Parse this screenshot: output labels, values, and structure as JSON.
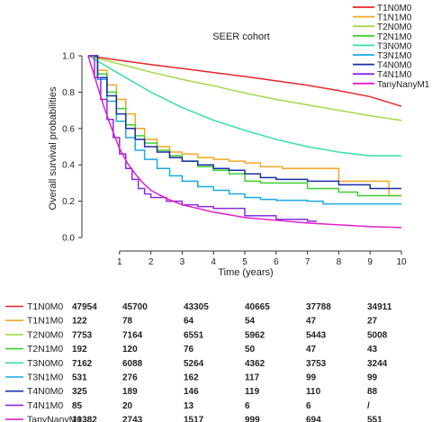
{
  "chart_data": {
    "type": "line",
    "title": "SEER cohort",
    "xlabel": "Time (years)",
    "ylabel": "Overall survival probabilities",
    "xlim": [
      0,
      10
    ],
    "ylim": [
      0,
      1
    ],
    "xticks": [
      "1",
      "2",
      "3",
      "4",
      "5",
      "6",
      "7",
      "8",
      "9",
      "10"
    ],
    "yticks": [
      "0.0",
      "0.2",
      "0.4",
      "0.6",
      "0.8",
      "1.0"
    ],
    "grid": false,
    "legend_position": "top-right",
    "series": [
      {
        "name": "T1N0M0",
        "color": "#e8262a",
        "step": false,
        "points": [
          [
            0,
            1.0
          ],
          [
            1,
            0.975
          ],
          [
            2,
            0.952
          ],
          [
            3,
            0.93
          ],
          [
            4,
            0.908
          ],
          [
            5,
            0.886
          ],
          [
            6,
            0.862
          ],
          [
            7,
            0.838
          ],
          [
            8,
            0.808
          ],
          [
            9,
            0.775
          ],
          [
            10,
            0.722
          ]
        ]
      },
      {
        "name": "T1N1M0",
        "color": "#f5a623",
        "step": true,
        "points": [
          [
            0,
            1.0
          ],
          [
            0.3,
            0.92
          ],
          [
            0.6,
            0.84
          ],
          [
            0.9,
            0.76
          ],
          [
            1.2,
            0.68
          ],
          [
            1.5,
            0.6
          ],
          [
            1.8,
            0.54
          ],
          [
            2.2,
            0.5
          ],
          [
            2.6,
            0.47
          ],
          [
            3,
            0.46
          ],
          [
            3.5,
            0.44
          ],
          [
            4,
            0.43
          ],
          [
            4.5,
            0.42
          ],
          [
            5,
            0.41
          ],
          [
            5.5,
            0.39
          ],
          [
            6.2,
            0.38
          ],
          [
            7,
            0.38
          ],
          [
            8,
            0.31
          ],
          [
            8.3,
            0.31
          ],
          [
            9.3,
            0.31
          ],
          [
            9.6,
            0.23
          ],
          [
            10,
            0.23
          ]
        ]
      },
      {
        "name": "T2N0M0",
        "color": "#a6d84a",
        "step": false,
        "points": [
          [
            0,
            1.0
          ],
          [
            1,
            0.955
          ],
          [
            2,
            0.91
          ],
          [
            3,
            0.87
          ],
          [
            4,
            0.835
          ],
          [
            5,
            0.795
          ],
          [
            6,
            0.76
          ],
          [
            7,
            0.73
          ],
          [
            8,
            0.7
          ],
          [
            9,
            0.67
          ],
          [
            10,
            0.645
          ]
        ]
      },
      {
        "name": "T2N1M0",
        "color": "#3ecf2f",
        "step": true,
        "points": [
          [
            0,
            1.0
          ],
          [
            0.3,
            0.9
          ],
          [
            0.6,
            0.8
          ],
          [
            0.9,
            0.71
          ],
          [
            1.2,
            0.62
          ],
          [
            1.5,
            0.56
          ],
          [
            1.8,
            0.52
          ],
          [
            2.2,
            0.48
          ],
          [
            2.6,
            0.45
          ],
          [
            3,
            0.42
          ],
          [
            3.5,
            0.39
          ],
          [
            4,
            0.37
          ],
          [
            4.5,
            0.35
          ],
          [
            5,
            0.31
          ],
          [
            5.5,
            0.3
          ],
          [
            6,
            0.3
          ],
          [
            7,
            0.27
          ],
          [
            8,
            0.25
          ],
          [
            8.6,
            0.23
          ],
          [
            10,
            0.23
          ]
        ]
      },
      {
        "name": "T3N0M0",
        "color": "#33e0a3",
        "step": false,
        "points": [
          [
            0,
            1.0
          ],
          [
            1,
            0.9
          ],
          [
            2,
            0.8
          ],
          [
            3,
            0.715
          ],
          [
            4,
            0.645
          ],
          [
            5,
            0.59
          ],
          [
            6,
            0.54
          ],
          [
            7,
            0.5
          ],
          [
            8,
            0.47
          ],
          [
            9,
            0.45
          ],
          [
            10,
            0.45
          ]
        ]
      },
      {
        "name": "T3N1M0",
        "color": "#19a9e8",
        "step": true,
        "points": [
          [
            0,
            1.0
          ],
          [
            0.3,
            0.87
          ],
          [
            0.6,
            0.75
          ],
          [
            0.9,
            0.64
          ],
          [
            1.2,
            0.55
          ],
          [
            1.5,
            0.48
          ],
          [
            1.8,
            0.43
          ],
          [
            2.2,
            0.38
          ],
          [
            2.6,
            0.34
          ],
          [
            3,
            0.31
          ],
          [
            3.5,
            0.28
          ],
          [
            4,
            0.26
          ],
          [
            4.5,
            0.24
          ],
          [
            5,
            0.22
          ],
          [
            5.5,
            0.21
          ],
          [
            6,
            0.205
          ],
          [
            7,
            0.2
          ],
          [
            7.5,
            0.185
          ],
          [
            10,
            0.185
          ]
        ]
      },
      {
        "name": "T4N0M0",
        "color": "#1a2fa8",
        "step": true,
        "points": [
          [
            0,
            1.0
          ],
          [
            0.3,
            0.88
          ],
          [
            0.6,
            0.78
          ],
          [
            0.9,
            0.68
          ],
          [
            1.2,
            0.6
          ],
          [
            1.5,
            0.54
          ],
          [
            1.8,
            0.5
          ],
          [
            2.2,
            0.47
          ],
          [
            2.6,
            0.44
          ],
          [
            3,
            0.42
          ],
          [
            3.5,
            0.4
          ],
          [
            4,
            0.38
          ],
          [
            4.5,
            0.37
          ],
          [
            5,
            0.35
          ],
          [
            5.5,
            0.33
          ],
          [
            6,
            0.32
          ],
          [
            7,
            0.31
          ],
          [
            8,
            0.29
          ],
          [
            9,
            0.27
          ],
          [
            9.5,
            0.27
          ],
          [
            10,
            0.27
          ]
        ]
      },
      {
        "name": "T4N1M0",
        "color": "#8a2be2",
        "step": true,
        "points": [
          [
            0,
            1.0
          ],
          [
            0.2,
            0.88
          ],
          [
            0.4,
            0.76
          ],
          [
            0.6,
            0.65
          ],
          [
            0.8,
            0.55
          ],
          [
            1,
            0.46
          ],
          [
            1.2,
            0.38
          ],
          [
            1.4,
            0.32
          ],
          [
            1.6,
            0.27
          ],
          [
            1.8,
            0.24
          ],
          [
            2,
            0.22
          ],
          [
            2.5,
            0.2
          ],
          [
            3,
            0.18
          ],
          [
            3.5,
            0.17
          ],
          [
            4,
            0.16
          ],
          [
            5,
            0.12
          ],
          [
            6,
            0.1
          ],
          [
            7,
            0.09
          ],
          [
            7.3,
            0.09
          ]
        ]
      },
      {
        "name": "TanyNanyM1",
        "color": "#e020c8",
        "step": false,
        "points": [
          [
            0,
            1.0
          ],
          [
            0.25,
            0.86
          ],
          [
            0.5,
            0.72
          ],
          [
            0.75,
            0.6
          ],
          [
            1,
            0.49
          ],
          [
            1.25,
            0.41
          ],
          [
            1.5,
            0.35
          ],
          [
            1.75,
            0.3
          ],
          [
            2,
            0.26
          ],
          [
            2.5,
            0.215
          ],
          [
            3,
            0.18
          ],
          [
            3.5,
            0.16
          ],
          [
            4,
            0.14
          ],
          [
            5,
            0.11
          ],
          [
            6,
            0.095
          ],
          [
            7,
            0.08
          ],
          [
            8,
            0.07
          ],
          [
            9,
            0.06
          ],
          [
            10,
            0.055
          ]
        ]
      }
    ]
  },
  "risk_table": {
    "rows": [
      {
        "label": "T1N0M0",
        "color": "#e8262a",
        "values": [
          "47954",
          "45700",
          "43305",
          "40665",
          "37788",
          "34911"
        ]
      },
      {
        "label": "T1N1M0",
        "color": "#f5a623",
        "values": [
          "122",
          "78",
          "64",
          "54",
          "47",
          "27"
        ]
      },
      {
        "label": "T2N0M0",
        "color": "#a6d84a",
        "values": [
          "7753",
          "7164",
          "6551",
          "5962",
          "5443",
          "5008"
        ]
      },
      {
        "label": "T2N1M0",
        "color": "#3ecf2f",
        "values": [
          "192",
          "120",
          "76",
          "50",
          "47",
          "43"
        ]
      },
      {
        "label": "T3N0M0",
        "color": "#33e0a3",
        "values": [
          "7162",
          "6088",
          "5264",
          "4362",
          "3753",
          "3244"
        ]
      },
      {
        "label": "T3N1M0",
        "color": "#19a9e8",
        "values": [
          "531",
          "276",
          "162",
          "117",
          "99",
          "99"
        ]
      },
      {
        "label": "T4N0M0",
        "color": "#1a2fa8",
        "values": [
          "325",
          "189",
          "146",
          "119",
          "110",
          "88"
        ]
      },
      {
        "label": "T4N1M0",
        "color": "#8a2be2",
        "values": [
          "85",
          "20",
          "13",
          "6",
          "6",
          "/"
        ]
      },
      {
        "label": "TanyNanyM1",
        "color": "#e020c8",
        "values": [
          "10382",
          "2743",
          "1517",
          "999",
          "694",
          "551"
        ]
      }
    ]
  }
}
